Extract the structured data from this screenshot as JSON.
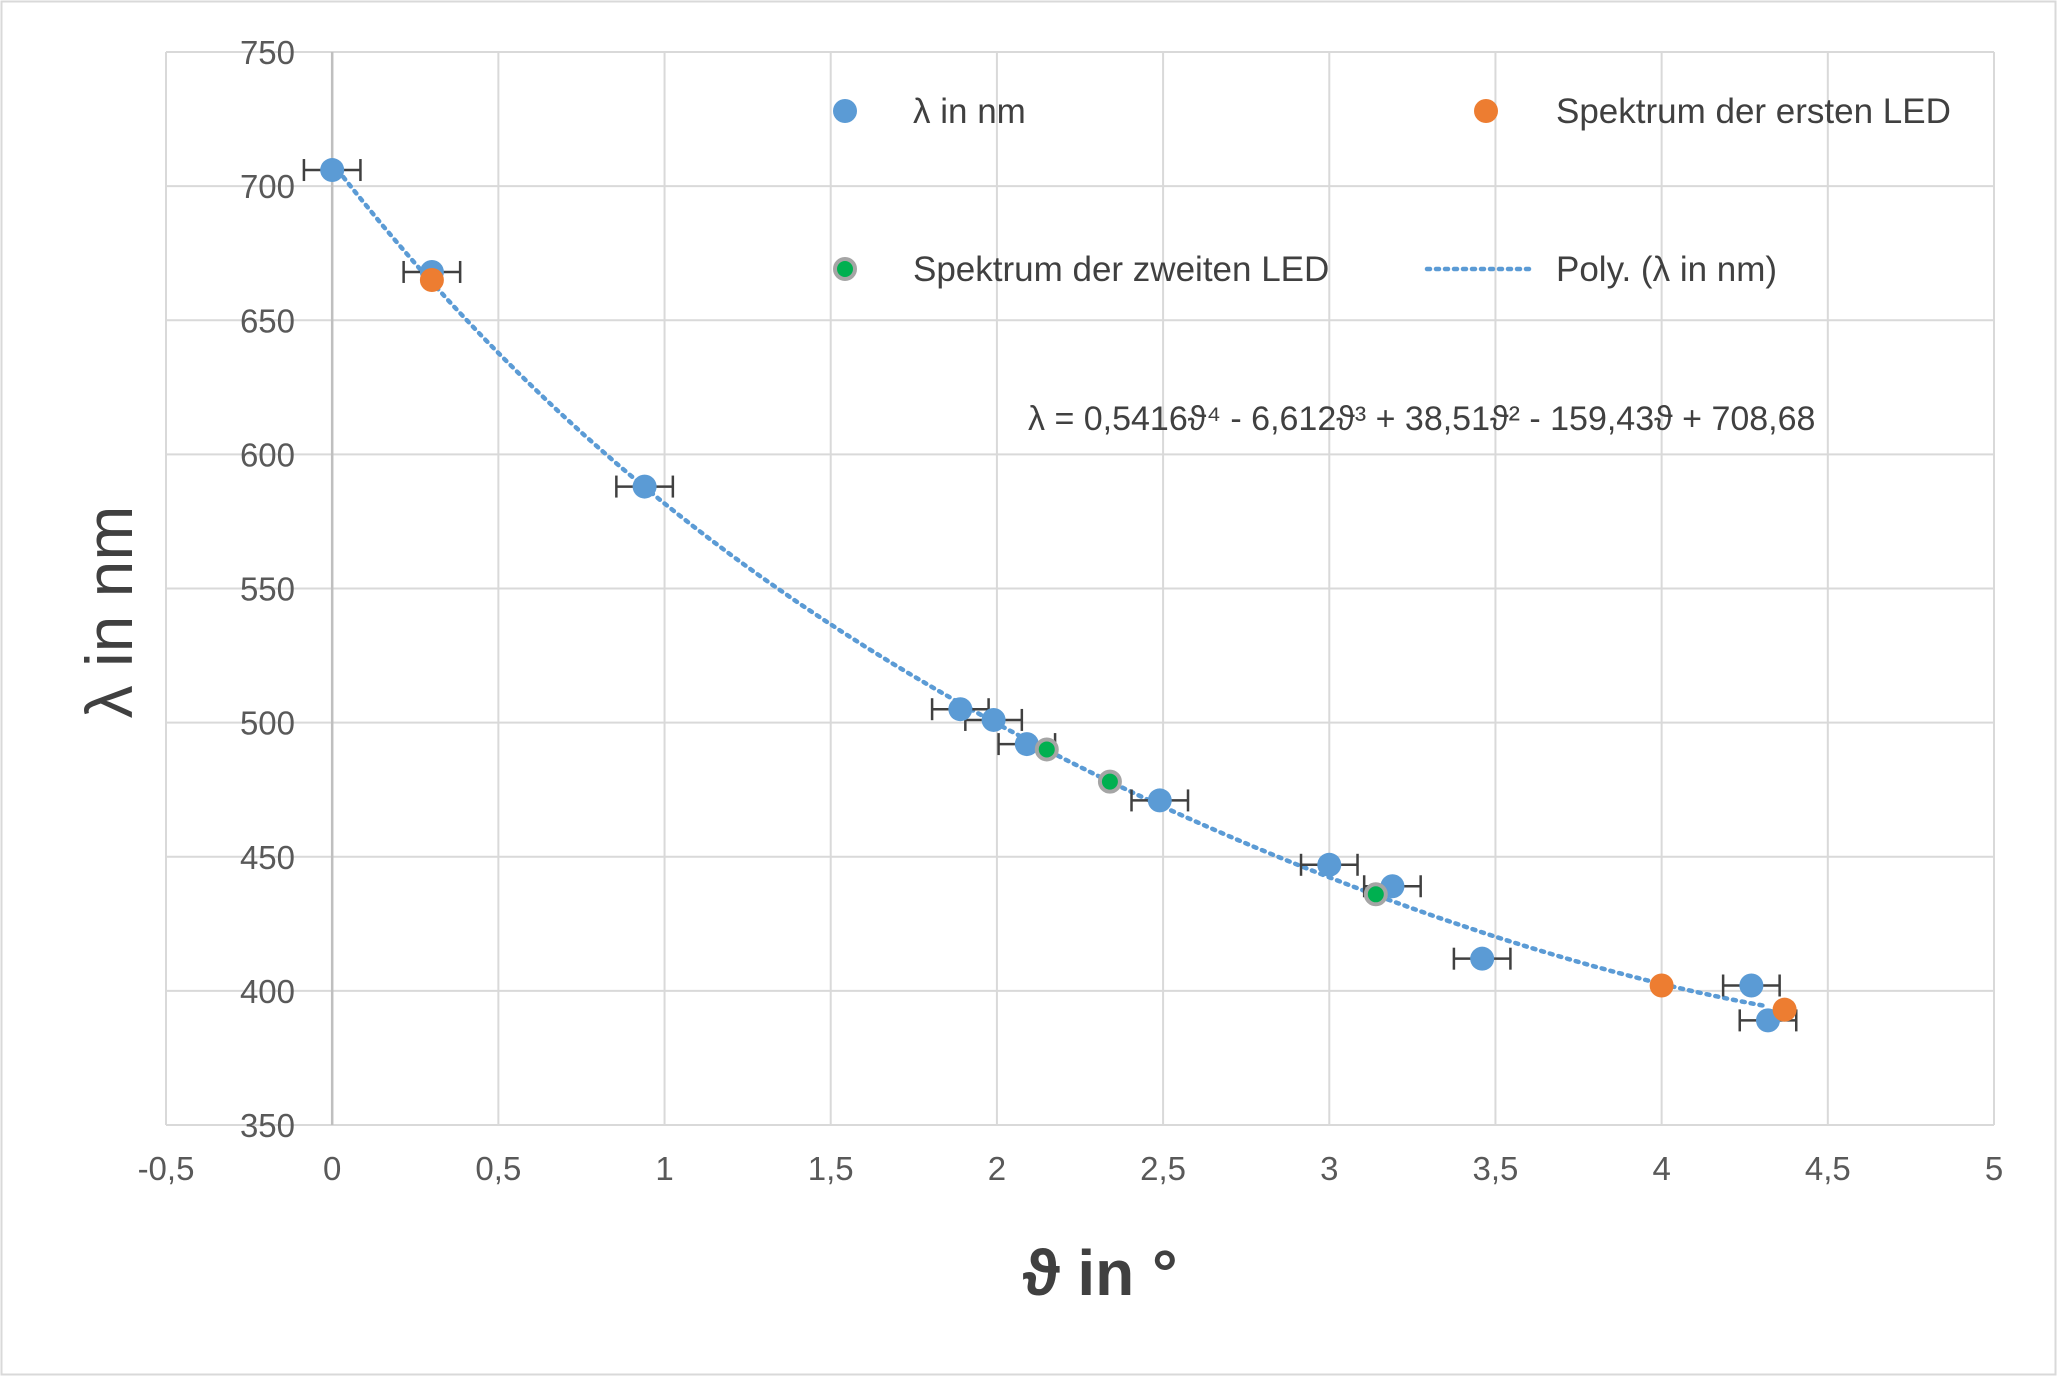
{
  "chart_data": {
    "type": "scatter",
    "xlabel": "ϑ in °",
    "ylabel": "λ in nm",
    "xlim": [
      -0.5,
      5
    ],
    "ylim": [
      350,
      750
    ],
    "xticks": [
      -0.5,
      0,
      0.5,
      1,
      1.5,
      2,
      2.5,
      3,
      3.5,
      4,
      4.5,
      5
    ],
    "xtick_labels": [
      "-0,5",
      "0",
      "0,5",
      "1",
      "1,5",
      "2",
      "2,5",
      "3",
      "3,5",
      "4",
      "4,5",
      "5"
    ],
    "yticks": [
      350,
      400,
      450,
      500,
      550,
      600,
      650,
      700,
      750
    ],
    "ytick_labels": [
      "350",
      "400",
      "450",
      "500",
      "550",
      "600",
      "650",
      "700",
      "750"
    ],
    "grid": true,
    "legend_placement": "top-right, inside plot area",
    "series": [
      {
        "name": "λ in nm",
        "color": "#5b9bd5",
        "x_error": 0.085,
        "points": [
          {
            "x": 0.0,
            "y": 706
          },
          {
            "x": 0.3,
            "y": 668
          },
          {
            "x": 0.94,
            "y": 588
          },
          {
            "x": 1.89,
            "y": 505
          },
          {
            "x": 1.99,
            "y": 501
          },
          {
            "x": 2.09,
            "y": 492
          },
          {
            "x": 2.49,
            "y": 471
          },
          {
            "x": 3.0,
            "y": 447
          },
          {
            "x": 3.19,
            "y": 439
          },
          {
            "x": 3.46,
            "y": 412
          },
          {
            "x": 4.27,
            "y": 402
          },
          {
            "x": 4.32,
            "y": 389
          }
        ]
      },
      {
        "name": "Spektrum der ersten LED",
        "color": "#ed7d31",
        "points": [
          {
            "x": 0.3,
            "y": 665
          },
          {
            "x": 4.0,
            "y": 402
          },
          {
            "x": 4.37,
            "y": 393
          }
        ]
      },
      {
        "name": "Spektrum der zweiten LED",
        "color": "#00b050",
        "edge_color": "#a5a5a5",
        "points": [
          {
            "x": 2.15,
            "y": 490
          },
          {
            "x": 2.34,
            "y": 478
          },
          {
            "x": 3.14,
            "y": 436
          }
        ]
      }
    ],
    "trendline": {
      "name": "Poly. (λ in nm)",
      "type": "polynomial",
      "order": 4,
      "coefficients": [
        0.5416,
        -6.612,
        38.51,
        -159.43,
        708.68
      ],
      "x_range": [
        0,
        4.32
      ],
      "color": "#5b9bd5",
      "style": "dotted"
    },
    "equation_label": "λ = 0,5416ϑ⁴ - 6,612ϑ³ + 38,51ϑ² - 159,43ϑ + 708,68"
  }
}
